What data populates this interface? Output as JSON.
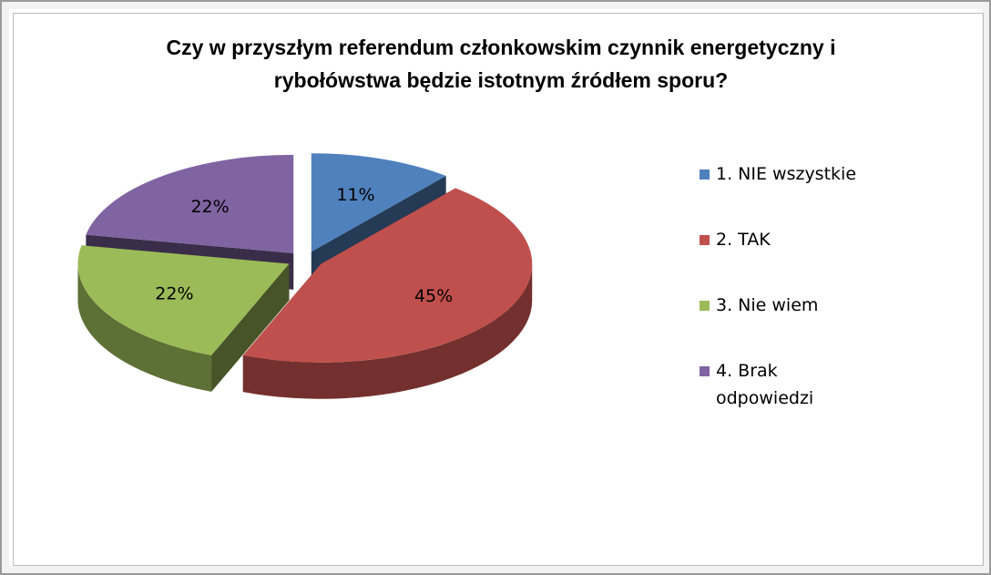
{
  "chart_data": {
    "type": "pie",
    "title": "Czy w przyszłym referendum członkowskim czynnik energetyczny i rybołówstwa będzie istotnym źródłem sporu?",
    "categories": [
      "1. NIE wszystkie",
      "2. TAK",
      "3. Nie wiem",
      "4. Brak odpowiedzi"
    ],
    "values": [
      11,
      45,
      22,
      22
    ],
    "value_labels": [
      "11%",
      "45%",
      "22%",
      "22%"
    ],
    "colors": [
      "#4f81bd",
      "#c0504d",
      "#9bbb59",
      "#8064a2"
    ],
    "legend": "right"
  }
}
